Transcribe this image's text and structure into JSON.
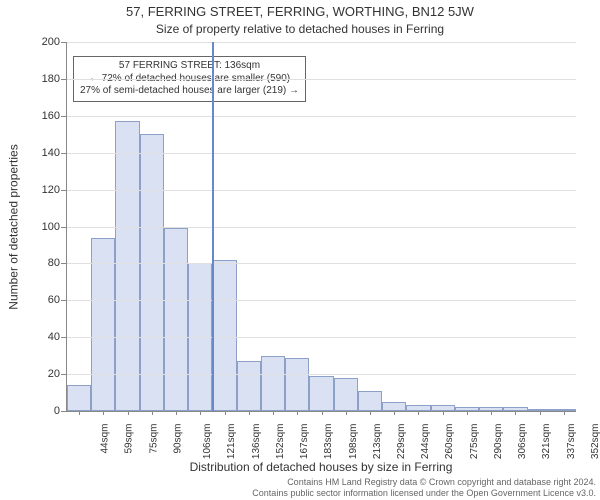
{
  "chart": {
    "type": "histogram",
    "title": "57, FERRING STREET, FERRING, WORTHING, BN12 5JW",
    "subtitle": "Size of property relative to detached houses in Ferring",
    "y_axis": {
      "label": "Number of detached properties",
      "min": 0,
      "max": 200,
      "tick_step": 20,
      "ticks": [
        0,
        20,
        40,
        60,
        80,
        100,
        120,
        140,
        160,
        180,
        200
      ],
      "label_fontsize": 12,
      "tick_fontsize": 11
    },
    "x_axis": {
      "label": "Distribution of detached houses by size in Ferring",
      "categories": [
        "44sqm",
        "59sqm",
        "75sqm",
        "90sqm",
        "106sqm",
        "121sqm",
        "136sqm",
        "152sqm",
        "167sqm",
        "183sqm",
        "198sqm",
        "213sqm",
        "229sqm",
        "244sqm",
        "260sqm",
        "275sqm",
        "290sqm",
        "306sqm",
        "321sqm",
        "337sqm",
        "352sqm"
      ],
      "label_fontsize": 12,
      "tick_fontsize": 10,
      "tick_rotation_deg": -90
    },
    "values": [
      14,
      94,
      157,
      150,
      99,
      80,
      82,
      27,
      30,
      29,
      19,
      18,
      11,
      5,
      3,
      3,
      2,
      2,
      2,
      1,
      1
    ],
    "bar_fill": "#d9e1f2",
    "bar_border": "#8ca0c8",
    "background_color": "#ffffff",
    "grid_color": "#e0e0e0",
    "axis_color": "#888888",
    "highlight": {
      "category_index": 6,
      "line_color": "#6688cc",
      "box_lines": [
        "57 FERRING STREET: 136sqm",
        "← 72% of detached houses are smaller (590)",
        "27% of semi-detached houses are larger (219) →"
      ]
    },
    "footer_line1": "Contains HM Land Registry data © Crown copyright and database right 2024.",
    "footer_line2": "Contains public sector information licensed under the Open Government Licence v3.0."
  }
}
